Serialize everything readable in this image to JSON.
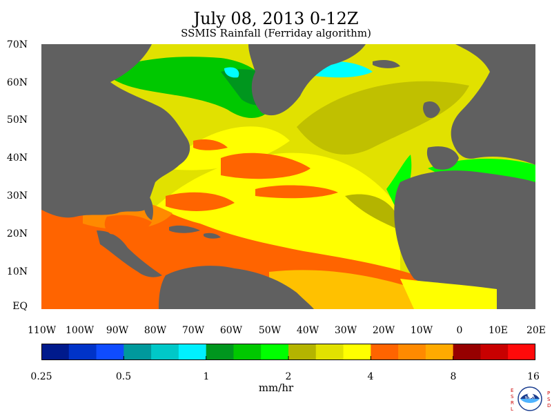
{
  "title": "July 08, 2013 0-12Z",
  "subtitle": "SSMIS Rainfall (Ferriday algorithm)",
  "y_labels": [
    "70N",
    "60N",
    "50N",
    "40N",
    "30N",
    "20N",
    "10N",
    "EQ"
  ],
  "x_labels": [
    "110W",
    "100W",
    "90W",
    "80W",
    "70W",
    "60W",
    "50W",
    "40W",
    "30W",
    "20W",
    "10W",
    "0",
    "10E",
    "20E"
  ],
  "colorbar": {
    "labels": [
      "0.25",
      "0.5",
      "1",
      "2",
      "4",
      "8",
      "16"
    ],
    "units": "mm/hr",
    "colors": [
      "#001a8c",
      "#0033c8",
      "#0f4cff",
      "#00999c",
      "#00c8c8",
      "#00f0ff",
      "#00961e",
      "#00c800",
      "#00ff00",
      "#b4b400",
      "#e1e100",
      "#ffff00",
      "#ff6400",
      "#ff8a00",
      "#ffaa00",
      "#960000",
      "#c80000",
      "#ff0a0a"
    ]
  },
  "colors": {
    "land": "#606060",
    "ocean_light_rain": "#e1e100",
    "ocean_moderate": "#ffff00",
    "ocean_heavy": "#ff6400"
  },
  "logo": {
    "left_letters": "ESRL",
    "right_letters": "PSD",
    "center_text": "NOAA"
  }
}
